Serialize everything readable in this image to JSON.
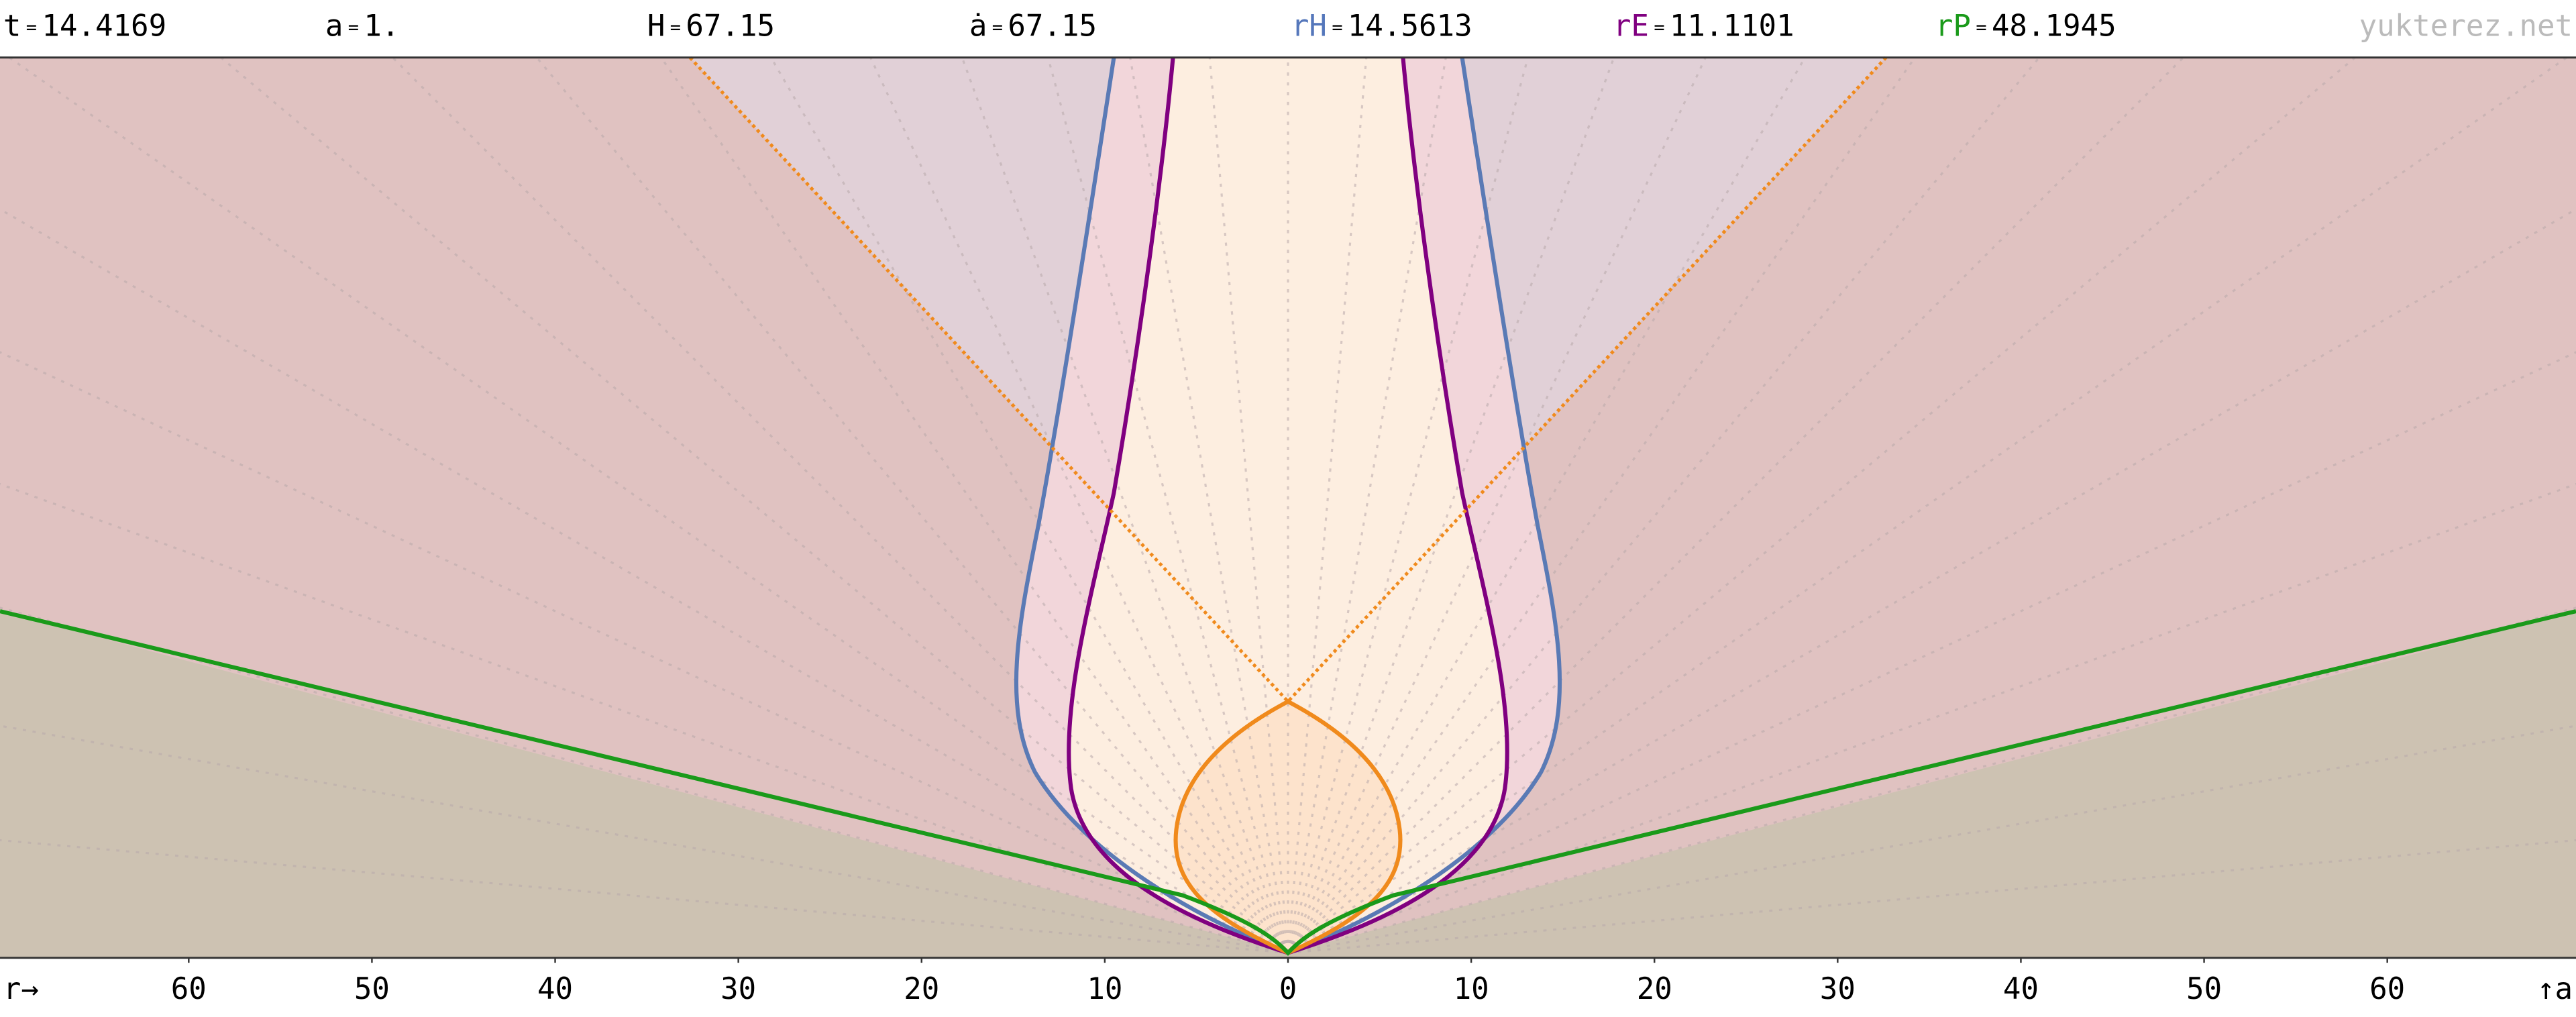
{
  "chart_data": {
    "type": "horizon",
    "header": [
      {
        "label": "t",
        "sep": "=",
        "value": "14.4169",
        "color": "#000000"
      },
      {
        "label": "a",
        "sep": "=",
        "value": "1.",
        "color": "#000000"
      },
      {
        "label": "H",
        "sep": "=",
        "value": "67.15",
        "color": "#000000"
      },
      {
        "label": "ȧ",
        "sep": "=",
        "value": "67.15",
        "color": "#000000"
      },
      {
        "label": "rH",
        "sep": "=",
        "value": "14.5613",
        "color": "#5577bb"
      },
      {
        "label": "rE",
        "sep": "=",
        "value": "11.1101",
        "color": "#800080"
      },
      {
        "label": "rP",
        "sep": "=",
        "value": "48.1945",
        "color": "#1a9a1a"
      }
    ],
    "watermark": "yukterez.net",
    "x_label": "r→",
    "y_label": "↑a",
    "xlim": [
      -70.3,
      70.3
    ],
    "xticks": [
      {
        "value": -60,
        "label": "60"
      },
      {
        "value": -50,
        "label": "50"
      },
      {
        "value": -40,
        "label": "40"
      },
      {
        "value": -30,
        "label": "30"
      },
      {
        "value": -20,
        "label": "20"
      },
      {
        "value": -10,
        "label": "10"
      },
      0,
      10,
      20,
      30,
      40,
      50,
      60
    ]
  }
}
